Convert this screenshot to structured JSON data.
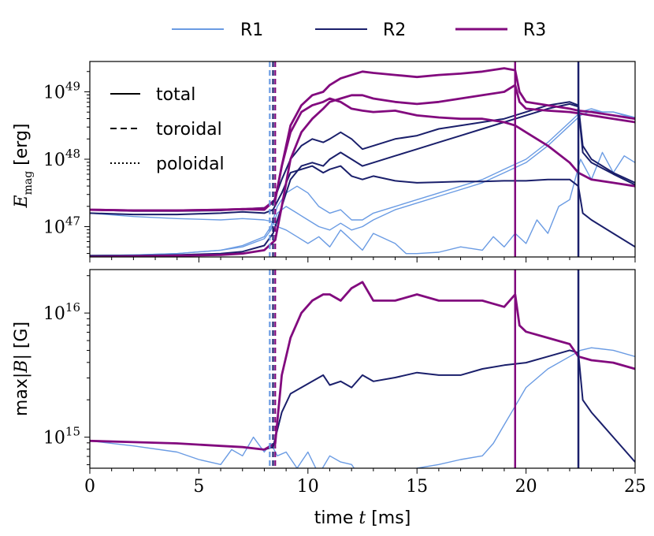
{
  "chart_data": [
    {
      "type": "line",
      "panel": "top",
      "ylabel_main": "E",
      "ylabel_sub": "mag",
      "ylabel_unit": " [erg]",
      "yscale": "log",
      "ylim_log10": [
        46.55,
        49.45
      ],
      "xlim": [
        0,
        25
      ],
      "y_ticks": [
        {
          "exp": 47,
          "label_base": "10",
          "label_exp": "47"
        },
        {
          "exp": 48,
          "label_base": "10",
          "label_exp": "48"
        },
        {
          "exp": 49,
          "label_base": "10",
          "label_exp": "49"
        }
      ],
      "style_legend": [
        {
          "label": "total",
          "dash": "solid"
        },
        {
          "label": "toroidal",
          "dash": "dashed"
        },
        {
          "label": "poloidal",
          "dash": "dotted"
        }
      ],
      "vlines": [
        {
          "x": 8.25,
          "series": "R1",
          "dash": "dashed"
        },
        {
          "x": 8.4,
          "series": "R2",
          "dash": "dashed"
        },
        {
          "x": 8.5,
          "series": "R3",
          "dash": "dashed"
        },
        {
          "x": 19.5,
          "series": "R3",
          "dash": "solid"
        },
        {
          "x": 22.4,
          "series": "R2",
          "dash": "solid"
        }
      ],
      "series": [
        {
          "name": "R1",
          "component": "total",
          "x": [
            0,
            2,
            4,
            6,
            7,
            8,
            8.3,
            8.6,
            9,
            9.5,
            10,
            10.5,
            11,
            11.5,
            12,
            12.5,
            13,
            14,
            15,
            16,
            17,
            18,
            19,
            20,
            21,
            22,
            22.5,
            23,
            23.5,
            24,
            25
          ],
          "log10": [
            46.57,
            46.58,
            46.6,
            46.65,
            46.72,
            46.85,
            47.0,
            47.3,
            47.5,
            47.6,
            47.5,
            47.3,
            47.2,
            47.25,
            47.1,
            47.1,
            47.2,
            47.3,
            47.4,
            47.5,
            47.6,
            47.7,
            47.85,
            48.0,
            48.25,
            48.55,
            48.7,
            48.75,
            48.7,
            48.7,
            48.62
          ]
        },
        {
          "name": "R1",
          "component": "toroidal",
          "x": [
            0,
            2,
            4,
            6,
            7,
            8,
            8.3,
            8.6,
            9,
            9.5,
            10,
            10.5,
            11,
            11.5,
            12,
            12.5,
            13,
            14,
            15,
            16,
            17,
            18,
            19,
            20,
            21,
            22,
            22.5,
            23,
            23.5,
            24,
            25
          ],
          "log10": [
            46.57,
            46.58,
            46.6,
            46.65,
            46.7,
            46.82,
            46.95,
            47.2,
            47.3,
            47.2,
            47.1,
            47.0,
            46.95,
            47.05,
            46.95,
            47.0,
            47.1,
            47.25,
            47.35,
            47.45,
            47.55,
            47.65,
            47.8,
            47.95,
            48.2,
            48.5,
            48.65,
            48.72,
            48.7,
            48.7,
            48.6
          ]
        },
        {
          "name": "R1",
          "component": "poloidal",
          "x": [
            0,
            2,
            4,
            6,
            7,
            8,
            8.3,
            8.6,
            9,
            9.5,
            10,
            10.5,
            11,
            11.5,
            12,
            12.5,
            13,
            14,
            14.5,
            15,
            16,
            17,
            18,
            18.5,
            19,
            19.5,
            20,
            20.5,
            21,
            21.5,
            22,
            22.5,
            23,
            23.5,
            24,
            24.5,
            25
          ],
          "log10": [
            47.2,
            47.15,
            47.12,
            47.1,
            47.12,
            47.1,
            47.08,
            47.0,
            46.95,
            46.85,
            46.75,
            46.85,
            46.7,
            46.95,
            46.8,
            46.65,
            46.9,
            46.75,
            46.6,
            46.6,
            46.62,
            46.7,
            46.65,
            46.85,
            46.7,
            46.9,
            46.75,
            47.1,
            46.9,
            47.3,
            47.4,
            48.0,
            47.7,
            48.1,
            47.8,
            48.05,
            47.95
          ]
        },
        {
          "name": "R2",
          "component": "total",
          "x": [
            0,
            2,
            4,
            6,
            7,
            8,
            8.4,
            8.8,
            9.2,
            9.7,
            10.2,
            10.7,
            11,
            11.5,
            12,
            12.5,
            13,
            14,
            15,
            16,
            17,
            18,
            19,
            20,
            21,
            22,
            22.4,
            22.6,
            23,
            24,
            25
          ],
          "log10": [
            47.25,
            47.23,
            47.23,
            47.24,
            47.26,
            47.28,
            47.35,
            47.7,
            48.0,
            48.2,
            48.3,
            48.25,
            48.3,
            48.4,
            48.3,
            48.15,
            48.2,
            48.3,
            48.35,
            48.45,
            48.5,
            48.55,
            48.6,
            48.7,
            48.8,
            48.85,
            48.8,
            48.2,
            48.0,
            47.8,
            47.65
          ]
        },
        {
          "name": "R2",
          "component": "toroidal",
          "x": [
            0,
            2,
            4,
            6,
            7,
            8,
            8.4,
            8.8,
            9.2,
            9.7,
            10.2,
            10.7,
            11,
            11.5,
            12,
            12.5,
            13,
            14,
            15,
            16,
            17,
            18,
            19,
            20,
            21,
            22,
            22.4,
            22.6,
            23,
            24,
            25
          ],
          "log10": [
            46.57,
            46.57,
            46.58,
            46.6,
            46.63,
            46.72,
            46.9,
            47.3,
            47.7,
            47.9,
            47.95,
            47.9,
            48.0,
            48.1,
            48.0,
            47.9,
            47.95,
            48.05,
            48.15,
            48.25,
            48.35,
            48.45,
            48.55,
            48.65,
            48.75,
            48.82,
            48.78,
            48.1,
            47.95,
            47.78,
            47.62
          ]
        },
        {
          "name": "R2",
          "component": "poloidal",
          "x": [
            0,
            2,
            4,
            6,
            7,
            8,
            8.4,
            8.8,
            9.2,
            9.7,
            10.2,
            10.7,
            11,
            11.5,
            12,
            12.5,
            13,
            14,
            15,
            16,
            17,
            18,
            19,
            20,
            21,
            22,
            22.4,
            22.6,
            23,
            24,
            25
          ],
          "log10": [
            47.2,
            47.18,
            47.18,
            47.2,
            47.22,
            47.2,
            47.25,
            47.5,
            47.8,
            47.85,
            47.9,
            47.8,
            47.85,
            47.9,
            47.75,
            47.7,
            47.75,
            47.68,
            47.65,
            47.66,
            47.67,
            47.67,
            47.68,
            47.68,
            47.7,
            47.7,
            47.6,
            47.2,
            47.1,
            46.9,
            46.7
          ]
        },
        {
          "name": "R3",
          "component": "total",
          "x": [
            0,
            2,
            4,
            6,
            7,
            8,
            8.5,
            8.8,
            9.2,
            9.7,
            10.2,
            10.7,
            11,
            11.5,
            12,
            12.5,
            13,
            14,
            15,
            16,
            17,
            18,
            19,
            19.5,
            19.7,
            20,
            21,
            22,
            22.4,
            23,
            24,
            25
          ],
          "log10": [
            47.25,
            47.24,
            47.24,
            47.25,
            47.26,
            47.27,
            47.4,
            47.9,
            48.5,
            48.8,
            48.95,
            49.0,
            49.1,
            49.2,
            49.25,
            49.3,
            49.28,
            49.25,
            49.22,
            49.25,
            49.27,
            49.3,
            49.35,
            49.32,
            49.0,
            48.85,
            48.8,
            48.75,
            48.72,
            48.7,
            48.65,
            48.6
          ]
        },
        {
          "name": "R3",
          "component": "toroidal",
          "x": [
            0,
            2,
            4,
            6,
            7,
            8,
            8.5,
            8.8,
            9.2,
            9.7,
            10.2,
            10.7,
            11,
            11.5,
            12,
            12.5,
            13,
            14,
            15,
            16,
            17,
            18,
            19,
            19.5,
            19.7,
            20,
            21,
            22,
            22.4,
            23,
            24,
            25
          ],
          "log10": [
            46.55,
            46.56,
            46.57,
            46.58,
            46.6,
            46.65,
            46.8,
            47.3,
            48.0,
            48.4,
            48.6,
            48.75,
            48.85,
            48.9,
            48.95,
            48.95,
            48.9,
            48.85,
            48.82,
            48.85,
            48.9,
            48.95,
            49.0,
            49.1,
            48.85,
            48.75,
            48.72,
            48.7,
            48.68,
            48.65,
            48.6,
            48.55
          ]
        },
        {
          "name": "R3",
          "component": "poloidal",
          "x": [
            0,
            2,
            4,
            6,
            7,
            8,
            8.5,
            8.8,
            9.2,
            9.7,
            10.2,
            10.7,
            11,
            11.5,
            12,
            12.5,
            13,
            14,
            15,
            16,
            17,
            18,
            19,
            19.5,
            20,
            21,
            22,
            22.4,
            23,
            24,
            25
          ],
          "log10": [
            47.25,
            47.24,
            47.24,
            47.25,
            47.26,
            47.25,
            47.4,
            47.9,
            48.4,
            48.7,
            48.8,
            48.85,
            48.9,
            48.85,
            48.75,
            48.72,
            48.7,
            48.72,
            48.65,
            48.62,
            48.6,
            48.6,
            48.55,
            48.5,
            48.4,
            48.2,
            47.95,
            47.8,
            47.7,
            47.65,
            47.6
          ]
        }
      ]
    },
    {
      "type": "line",
      "panel": "bottom",
      "ylabel_prefix": "max",
      "ylabel_var": "|B|",
      "ylabel_unit": " [G]",
      "yscale": "log",
      "ylim_log10": [
        14.75,
        16.35
      ],
      "xlim": [
        0,
        25
      ],
      "xlabel_prefix": "time ",
      "xlabel_var": "t",
      "xlabel_unit": " [ms]",
      "x_ticks": [
        0,
        5,
        10,
        15,
        20,
        25
      ],
      "y_ticks": [
        {
          "exp": 15,
          "label_base": "10",
          "label_exp": "15"
        },
        {
          "exp": 16,
          "label_base": "10",
          "label_exp": "16"
        }
      ],
      "vlines": [
        {
          "x": 8.25,
          "series": "R1",
          "dash": "dashed"
        },
        {
          "x": 8.4,
          "series": "R2",
          "dash": "dashed"
        },
        {
          "x": 8.5,
          "series": "R3",
          "dash": "dashed"
        },
        {
          "x": 19.5,
          "series": "R3",
          "dash": "solid"
        },
        {
          "x": 22.4,
          "series": "R2",
          "dash": "solid"
        }
      ],
      "series": [
        {
          "name": "R1",
          "x": [
            0,
            2,
            4,
            5,
            6,
            6.5,
            7,
            7.5,
            8,
            8.3,
            8.6,
            9,
            9.5,
            10,
            10.5,
            11,
            11.5,
            12,
            12.5,
            13,
            14,
            15,
            16,
            17,
            18,
            18.5,
            19,
            19.5,
            20,
            21,
            22,
            22.5,
            23,
            24,
            25
          ],
          "log10": [
            14.97,
            14.93,
            14.88,
            14.82,
            14.78,
            14.9,
            14.85,
            15.0,
            14.88,
            14.95,
            14.85,
            14.88,
            14.75,
            14.88,
            14.7,
            14.85,
            14.8,
            14.78,
            14.65,
            14.7,
            14.68,
            14.75,
            14.78,
            14.82,
            14.85,
            14.95,
            15.1,
            15.25,
            15.4,
            15.55,
            15.65,
            15.7,
            15.72,
            15.7,
            15.65
          ]
        },
        {
          "name": "R2",
          "x": [
            0,
            2,
            4,
            6,
            7,
            8,
            8.4,
            8.8,
            9.2,
            9.7,
            10.2,
            10.7,
            11,
            11.5,
            12,
            12.5,
            13,
            14,
            15,
            16,
            17,
            18,
            19,
            20,
            21,
            22,
            22.4,
            22.6,
            23,
            24,
            25
          ],
          "log10": [
            14.97,
            14.96,
            14.95,
            14.93,
            14.92,
            14.9,
            14.92,
            15.2,
            15.35,
            15.4,
            15.45,
            15.5,
            15.42,
            15.45,
            15.4,
            15.5,
            15.45,
            15.48,
            15.52,
            15.5,
            15.5,
            15.55,
            15.58,
            15.6,
            15.65,
            15.7,
            15.68,
            15.3,
            15.2,
            15.0,
            14.8
          ]
        },
        {
          "name": "R3",
          "x": [
            0,
            2,
            4,
            6,
            7,
            8,
            8.5,
            8.8,
            9.2,
            9.7,
            10.2,
            10.7,
            11,
            11.5,
            12,
            12.5,
            13,
            14,
            15,
            16,
            17,
            18,
            19,
            19.5,
            19.7,
            20,
            21,
            22,
            22.4,
            23,
            24,
            25
          ],
          "log10": [
            14.97,
            14.96,
            14.95,
            14.93,
            14.92,
            14.9,
            14.95,
            15.5,
            15.8,
            16.0,
            16.1,
            16.15,
            16.15,
            16.1,
            16.2,
            16.25,
            16.1,
            16.1,
            16.15,
            16.1,
            16.1,
            16.1,
            16.05,
            16.15,
            15.9,
            15.85,
            15.8,
            15.75,
            15.65,
            15.62,
            15.6,
            15.55
          ]
        }
      ]
    }
  ],
  "legend": {
    "items": [
      {
        "label": "R1",
        "color": "#6a9be3"
      },
      {
        "label": "R2",
        "color": "#1a1f6b"
      },
      {
        "label": "R3",
        "color": "#820a7e"
      }
    ]
  },
  "colors": {
    "R1": "#6a9be3",
    "R2": "#1a1f6b",
    "R3": "#820a7e"
  }
}
